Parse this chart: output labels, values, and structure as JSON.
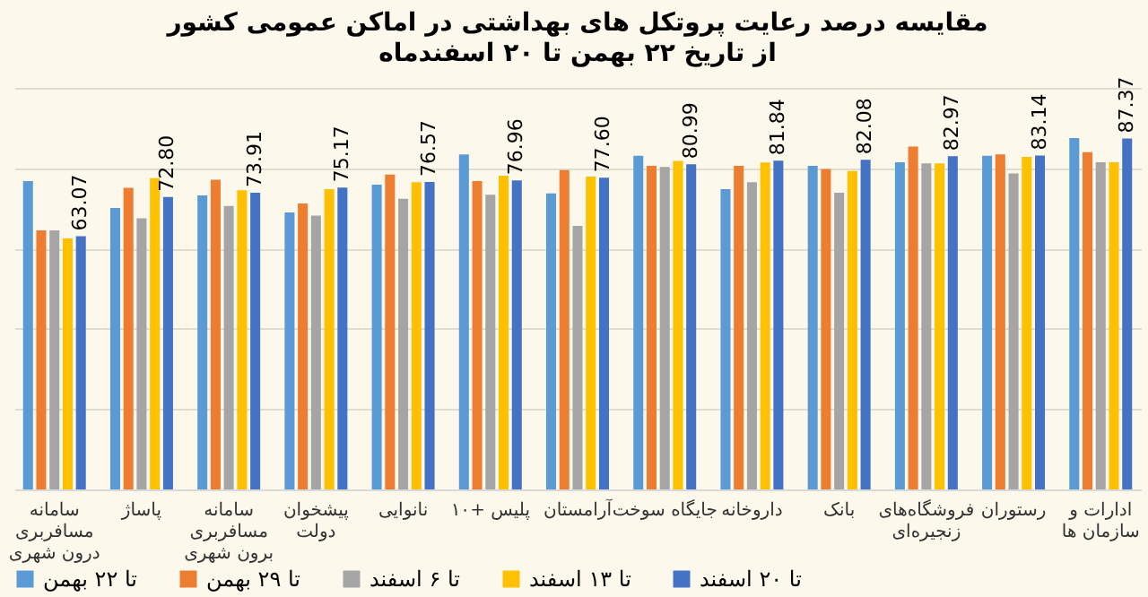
{
  "chart_data": {
    "type": "bar",
    "title": "مقایسه درصد رعایت پروتکل های بهداشتی در اماکن عمومی کشور",
    "subtitle": "از تاریخ ۲۲ بهمن تا ۲۰ اسفندماه",
    "categories": [
      "سامانه مسافربری درون شهری",
      "پاساژ",
      "سامانه مسافربری برون شهری",
      "پیشخوان دولت",
      "نانوایی",
      "پلیس +۱۰",
      "آرامستان",
      "جایگاه سوخت",
      "داروخانه",
      "بانک",
      "فروشگاه‌های زنجیره‌ای",
      "رستوران",
      "ادارات و سازمان ها"
    ],
    "series": [
      {
        "name": "تا ۲۲ بهمن",
        "color": "#5b9bd5",
        "values": [
          76.8,
          70.1,
          73.2,
          69.0,
          75.9,
          83.4,
          73.7,
          83.1,
          74.8,
          80.6,
          81.5,
          83.1,
          87.5
        ]
      },
      {
        "name": "تا ۲۹ بهمن",
        "color": "#ed7d31",
        "values": [
          64.5,
          75.1,
          77.1,
          71.2,
          78.4,
          76.8,
          79.5,
          80.6,
          80.6,
          79.8,
          85.4,
          83.4,
          84.0
        ]
      },
      {
        "name": "تا ۶ اسفند",
        "color": "#a5a5a5",
        "values": [
          64.5,
          67.5,
          70.6,
          68.2,
          72.4,
          73.4,
          65.6,
          80.3,
          76.5,
          73.9,
          81.2,
          78.7,
          81.5
        ]
      },
      {
        "name": "تا ۱۳ اسفند",
        "color": "#ffc000",
        "values": [
          62.5,
          77.5,
          74.5,
          74.8,
          76.5,
          78.1,
          77.9,
          81.8,
          81.4,
          79.3,
          81.2,
          82.8,
          81.5
        ]
      },
      {
        "name": "تا ۲۰ اسفند",
        "color": "#4472c4",
        "values": [
          63.07,
          72.8,
          73.91,
          75.17,
          76.57,
          76.96,
          77.6,
          80.99,
          81.84,
          82.08,
          82.97,
          83.14,
          87.37
        ],
        "value_labels": [
          "63.07",
          "72.80",
          "73.91",
          "75.17",
          "76.57",
          "76.96",
          "77.60",
          "80.99",
          "81.84",
          "82.08",
          "82.97",
          "83.14",
          "87.37"
        ]
      }
    ],
    "ylim": [
      0,
      100
    ],
    "tick_labels": "x",
    "grid": "y",
    "legend": "bottom"
  }
}
